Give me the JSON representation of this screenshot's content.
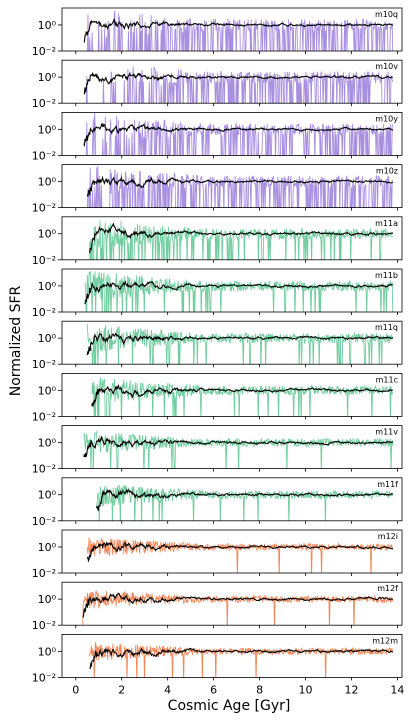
{
  "figure": {
    "xlabel": "Cosmic Age [Gyr]",
    "ylabel": "Normalized SFR"
  },
  "chart_data": {
    "type": "line",
    "xlim": [
      -0.6,
      14.2
    ],
    "ylim_log10": [
      -2,
      1.3
    ],
    "x_ticks": [
      0,
      2,
      4,
      6,
      8,
      10,
      12,
      14
    ],
    "x_tick_labels": [
      "0",
      "2",
      "4",
      "6",
      "8",
      "10",
      "12",
      "14"
    ],
    "y_ticks_log10": [
      0,
      -2
    ],
    "y_tick_labels": [
      "10⁰",
      "10⁻²"
    ],
    "colors": {
      "m10": "#a98fe0",
      "m11": "#72cda0",
      "m12": "#f08a5d",
      "smooth": "#000000"
    },
    "panels": [
      {
        "name": "m10q",
        "group": "m10",
        "x_start": 0.35,
        "x_end": 13.8,
        "burstiness": 0.9,
        "gap_frac": 0.55
      },
      {
        "name": "m10v",
        "group": "m10",
        "x_start": 0.35,
        "x_end": 13.8,
        "burstiness": 0.9,
        "gap_frac": 0.6
      },
      {
        "name": "m10y",
        "group": "m10",
        "x_start": 0.35,
        "x_end": 13.8,
        "burstiness": 0.9,
        "gap_frac": 0.5
      },
      {
        "name": "m10z",
        "group": "m10",
        "x_start": 0.5,
        "x_end": 13.8,
        "burstiness": 0.9,
        "gap_frac": 0.45
      },
      {
        "name": "m11a",
        "group": "m11",
        "x_start": 0.6,
        "x_end": 13.8,
        "burstiness": 0.8,
        "gap_frac": 0.25
      },
      {
        "name": "m11b",
        "group": "m11",
        "x_start": 0.4,
        "x_end": 13.8,
        "burstiness": 0.8,
        "gap_frac": 0.12
      },
      {
        "name": "m11q",
        "group": "m11",
        "x_start": 0.5,
        "x_end": 13.8,
        "burstiness": 0.75,
        "gap_frac": 0.1
      },
      {
        "name": "m11c",
        "group": "m11",
        "x_start": 0.7,
        "x_end": 13.8,
        "burstiness": 0.7,
        "gap_frac": 0.06
      },
      {
        "name": "m11v",
        "group": "m11",
        "x_start": 0.35,
        "x_end": 13.8,
        "burstiness": 0.6,
        "gap_frac": 0.04
      },
      {
        "name": "m11f",
        "group": "m11",
        "x_start": 0.9,
        "x_end": 13.8,
        "burstiness": 0.6,
        "gap_frac": 0.04
      },
      {
        "name": "m12i",
        "group": "m12",
        "x_start": 0.5,
        "x_end": 13.8,
        "burstiness": 0.5,
        "gap_frac": 0.02
      },
      {
        "name": "m12f",
        "group": "m12",
        "x_start": 0.3,
        "x_end": 13.8,
        "burstiness": 0.5,
        "gap_frac": 0.02
      },
      {
        "name": "m12m",
        "group": "m12",
        "x_start": 0.6,
        "x_end": 13.8,
        "burstiness": 0.5,
        "gap_frac": 0.02
      }
    ]
  }
}
